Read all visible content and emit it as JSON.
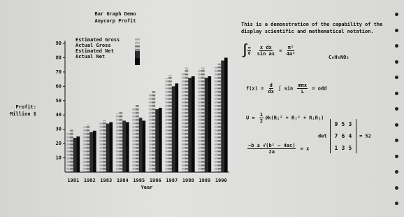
{
  "chart_data": {
    "type": "bar",
    "title": "Bar Graph Demo",
    "subtitle": "Anycorp Profit",
    "ylabel": "Profit: Million $",
    "xlabel": "Year",
    "categories": [
      "1981",
      "1982",
      "1983",
      "1984",
      "1985",
      "1986",
      "1987",
      "1988",
      "1989",
      "1990"
    ],
    "series": [
      {
        "name": "Estimated Gross",
        "color": "#a8a8a8",
        "values": [
          28,
          32,
          35,
          41,
          45,
          55,
          66,
          70,
          72,
          74
        ]
      },
      {
        "name": "Actual Gross",
        "color": "#6e6e6e",
        "values": [
          30,
          33,
          36,
          42,
          47,
          57,
          68,
          73,
          73,
          76
        ]
      },
      {
        "name": "Estimated Net",
        "color": "#2a2a2a",
        "values": [
          24,
          28,
          34,
          36,
          38,
          44,
          60,
          66,
          66,
          78
        ]
      },
      {
        "name": "Actual Net",
        "color": "#0a0a0a",
        "values": [
          25,
          29,
          35,
          35,
          36,
          45,
          62,
          67,
          67,
          80
        ]
      }
    ],
    "ylim": [
      0,
      90
    ],
    "yticks": [
      10,
      20,
      30,
      40,
      50,
      60,
      70,
      80,
      90
    ]
  },
  "notation": {
    "intro": "This is a demonstration of the capability of the display scientific and mathematical notation.",
    "integral": {
      "upper": "∞",
      "lower": "0",
      "num": "x dx",
      "den": "sin ax",
      "eq": "=",
      "rnum": "π²",
      "rden": "4a²"
    },
    "chem": "C₆H₅NO₂",
    "fx": {
      "lhs": "f(x) =",
      "dnum": "d",
      "dden": "dx",
      "op": "∫ sin",
      "anum": "mπx",
      "aden": "L",
      "rhs": "= odd"
    },
    "u": {
      "lhs": "U =",
      "num": "1",
      "den": "2",
      "rhs": "∂k(Rᵢ² + Rⱼ² + RᵢRⱼ)"
    },
    "quad": {
      "num": "−b ± √(b² − 4ac)",
      "den": "2a",
      "rhs": "= x"
    },
    "det": {
      "label": "det",
      "matrix": [
        [
          9,
          5,
          3
        ],
        [
          7,
          6,
          4
        ],
        [
          1,
          3,
          5
        ]
      ],
      "eq": "=",
      "result": 52
    }
  }
}
